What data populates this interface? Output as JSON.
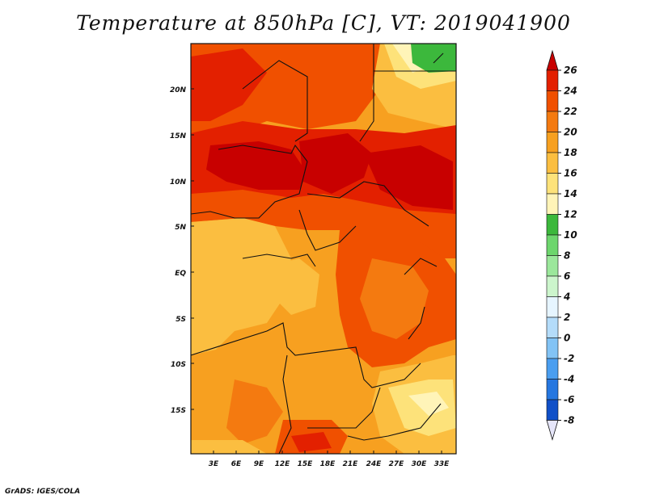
{
  "title": "Temperature at 850hPa [C], VT: 2019041900",
  "credit": "GrADS: IGES/COLA",
  "map": {
    "lat_labels": [
      "20N",
      "15N",
      "10N",
      "5N",
      "EQ",
      "5S",
      "10S",
      "15S"
    ],
    "lon_labels": [
      "3E",
      "6E",
      "9E",
      "12E",
      "15E",
      "18E",
      "21E",
      "24E",
      "27E",
      "30E",
      "33E"
    ]
  },
  "colorbar": {
    "labels": [
      "26",
      "24",
      "22",
      "20",
      "18",
      "16",
      "14",
      "12",
      "10",
      "8",
      "6",
      "4",
      "2",
      "0",
      "-2",
      "-4",
      "-6",
      "-8"
    ],
    "colors": [
      "#c80000",
      "#e32000",
      "#f05000",
      "#f47a10",
      "#f7a020",
      "#fbbe40",
      "#fde27a",
      "#fff4b8",
      "#3cb83c",
      "#6dd66d",
      "#9be79b",
      "#ccf5cc",
      "#e6f5ff",
      "#b4dcfa",
      "#82c3f5",
      "#4a9ef0",
      "#2677e0",
      "#1050c8",
      "#0a30a0",
      "#081070"
    ],
    "top_color": "#c80000",
    "bottom_color": "#e6e6fa"
  }
}
